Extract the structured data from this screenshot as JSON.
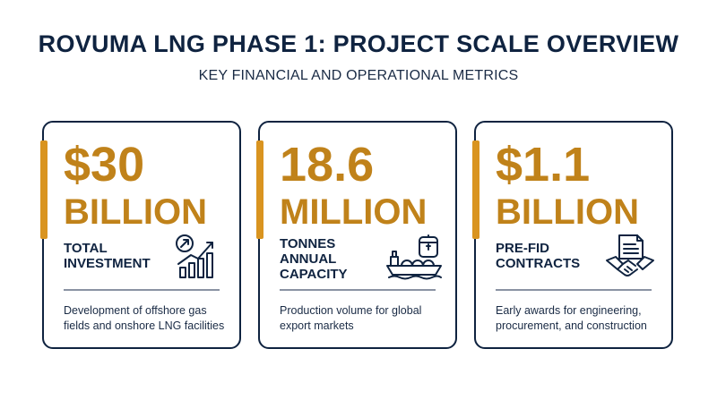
{
  "header": {
    "title": "ROVUMA LNG PHASE 1: PROJECT SCALE OVERVIEW",
    "subtitle": "KEY FINANCIAL AND OPERATIONAL METRICS"
  },
  "colors": {
    "navy": "#0f2340",
    "gold": "#c0821a",
    "accent": "#d99420"
  },
  "cards": [
    {
      "value": "$30",
      "unit": "BILLION",
      "label": "TOTAL INVESTMENT",
      "icon": "growth-chart-icon",
      "description": "Development of offshore gas fields and onshore LNG facilities"
    },
    {
      "value": "18.6",
      "unit": "MILLION",
      "label": "TONNES ANNUAL CAPACITY",
      "icon": "lng-tanker-icon",
      "description": "Production volume for global export markets"
    },
    {
      "value": "$1.1",
      "unit": "BILLION",
      "label": "PRE-FID CONTRACTS",
      "icon": "contract-handshake-icon",
      "description": "Early awards for engineering, procurement, and construction"
    }
  ]
}
